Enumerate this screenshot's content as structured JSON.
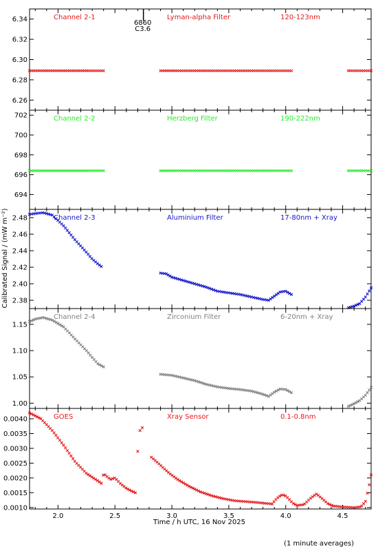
{
  "ylabel": "Calibrated Signal / (mW m⁻²)",
  "xlabel": "Time / h UTC, 16 Nov 2025",
  "footnote": "(1 minute averages)",
  "xlim": [
    1.75,
    4.75
  ],
  "xticks": [
    "2.0",
    "2.5",
    "3.0",
    "3.5",
    "4.0",
    "4.5"
  ],
  "event_marker": {
    "x": 2.75,
    "labels": [
      "6860",
      "C3.6"
    ]
  },
  "chart_data": [
    {
      "type": "scatter",
      "name": "Channel 2-1",
      "labels": [
        "Channel 2-1",
        "Lyman-alpha Filter",
        "120-123nm"
      ],
      "color": "#e31a1c",
      "ylim": [
        6.25,
        6.35
      ],
      "yticks": [
        "6.26",
        "6.28",
        "6.30",
        "6.32",
        "6.34"
      ],
      "segments": [
        {
          "x": [
            1.75,
            2.4
          ],
          "y": [
            6.289,
            6.289
          ]
        },
        {
          "x": [
            2.9,
            4.05
          ],
          "y": [
            6.289,
            6.289
          ]
        },
        {
          "x": [
            4.55,
            4.75
          ],
          "y": [
            6.289,
            6.289
          ]
        }
      ]
    },
    {
      "type": "scatter",
      "name": "Channel 2-2",
      "labels": [
        "Channel 2-2",
        "Herzberg Filter",
        "190-222nm"
      ],
      "color": "#22ee22",
      "ylim": [
        692.5,
        702.5
      ],
      "yticks": [
        "694",
        "696",
        "698",
        "700",
        "702"
      ],
      "segments": [
        {
          "x": [
            1.75,
            2.4
          ],
          "y": [
            696.4,
            696.4
          ]
        },
        {
          "x": [
            2.9,
            4.05
          ],
          "y": [
            696.4,
            696.4
          ]
        },
        {
          "x": [
            4.55,
            4.75
          ],
          "y": [
            696.4,
            696.4
          ]
        }
      ]
    },
    {
      "type": "scatter",
      "name": "Channel 2-3",
      "labels": [
        "Channel 2-3",
        "Aluminium Filter",
        "17-80nm + Xray"
      ],
      "color": "#1515cc",
      "ylim": [
        2.37,
        2.49
      ],
      "yticks": [
        "2.38",
        "2.40",
        "2.42",
        "2.44",
        "2.46",
        "2.48"
      ],
      "segments": [
        {
          "x": [
            1.75,
            1.8,
            1.87,
            1.95,
            2.05,
            2.15,
            2.25,
            2.3,
            2.35,
            2.38
          ],
          "y": [
            2.484,
            2.485,
            2.486,
            2.483,
            2.47,
            2.453,
            2.438,
            2.43,
            2.424,
            2.421
          ]
        },
        {
          "x": [
            2.9,
            2.95,
            3.0,
            3.1,
            3.2,
            3.3,
            3.4,
            3.5,
            3.6,
            3.7,
            3.8,
            3.85,
            3.9,
            3.95,
            4.0,
            4.05
          ],
          "y": [
            2.413,
            2.412,
            2.408,
            2.404,
            2.4,
            2.396,
            2.391,
            2.389,
            2.387,
            2.384,
            2.381,
            2.38,
            2.385,
            2.39,
            2.391,
            2.387
          ]
        },
        {
          "x": [
            4.55,
            4.6,
            4.65,
            4.7,
            4.75
          ],
          "y": [
            2.371,
            2.373,
            2.376,
            2.384,
            2.395
          ]
        }
      ]
    },
    {
      "type": "scatter",
      "name": "Channel 2-4",
      "labels": [
        "Channel 2-4",
        "Zirconium Filter",
        "6-20nm + Xray"
      ],
      "color": "#808080",
      "ylim": [
        0.99,
        1.18
      ],
      "yticks": [
        "1.00",
        "1.05",
        "1.10",
        "1.15"
      ],
      "segments": [
        {
          "x": [
            1.75,
            1.8,
            1.87,
            1.95,
            2.05,
            2.15,
            2.25,
            2.3,
            2.35,
            2.4
          ],
          "y": [
            1.155,
            1.16,
            1.163,
            1.158,
            1.145,
            1.122,
            1.1,
            1.087,
            1.075,
            1.069
          ]
        },
        {
          "x": [
            2.9,
            3.0,
            3.1,
            3.2,
            3.3,
            3.4,
            3.5,
            3.6,
            3.7,
            3.8,
            3.85,
            3.9,
            3.95,
            4.0,
            4.05
          ],
          "y": [
            1.055,
            1.053,
            1.048,
            1.043,
            1.036,
            1.031,
            1.028,
            1.026,
            1.023,
            1.017,
            1.013,
            1.021,
            1.027,
            1.026,
            1.02
          ]
        },
        {
          "x": [
            4.55,
            4.6,
            4.65,
            4.7,
            4.75
          ],
          "y": [
            0.994,
            0.999,
            1.005,
            1.015,
            1.03
          ]
        }
      ]
    },
    {
      "type": "scatter",
      "name": "GOES",
      "labels": [
        "GOES",
        "Xray Sensor",
        "0.1-0.8nm"
      ],
      "color": "#e31a1c",
      "ylim": [
        0.00095,
        0.00435
      ],
      "yticks": [
        "0.0010",
        "0.0015",
        "0.0020",
        "0.0025",
        "0.0030",
        "0.0035",
        "0.0040"
      ],
      "segments": [
        {
          "x": [
            1.75,
            1.85,
            1.95,
            2.05,
            2.15,
            2.25,
            2.35,
            2.38
          ],
          "y": [
            0.0042,
            0.004,
            0.0036,
            0.0031,
            0.00255,
            0.00215,
            0.0019,
            0.00182
          ]
        },
        {
          "x": [
            2.38,
            2.4,
            2.43,
            2.46,
            2.5,
            2.55,
            2.6,
            2.65,
            2.68
          ],
          "y": [
            0.00182,
            0.00215,
            0.00205,
            0.00195,
            0.002,
            0.0018,
            0.00165,
            0.00155,
            0.0015
          ]
        },
        {
          "x": [
            2.7,
            2.72,
            2.74
          ],
          "y": [
            0.0029,
            0.0036,
            0.0037
          ]
        },
        {
          "x": [
            2.82,
            2.88,
            2.93,
            2.98,
            3.05,
            3.15,
            3.25,
            3.35,
            3.45,
            3.55,
            3.65,
            3.75,
            3.85,
            3.88
          ],
          "y": [
            0.0027,
            0.0025,
            0.00232,
            0.00215,
            0.00195,
            0.00172,
            0.00153,
            0.0014,
            0.0013,
            0.00123,
            0.0012,
            0.00117,
            0.00113,
            0.00112
          ]
        },
        {
          "x": [
            3.88,
            3.92,
            3.96,
            3.99,
            4.02,
            4.06,
            4.1
          ],
          "y": [
            0.00112,
            0.0013,
            0.00142,
            0.00142,
            0.00132,
            0.00115,
            0.00107
          ]
        },
        {
          "x": [
            4.1,
            4.16,
            4.22,
            4.27,
            4.32,
            4.37,
            4.42
          ],
          "y": [
            0.00107,
            0.0011,
            0.00132,
            0.00146,
            0.0013,
            0.00113,
            0.00105
          ]
        },
        {
          "x": [
            4.42,
            4.5,
            4.6,
            4.66,
            4.7,
            4.73,
            4.75
          ],
          "y": [
            0.00105,
            0.00102,
            0.001,
            0.00102,
            0.0012,
            0.0017,
            0.0021
          ]
        }
      ]
    }
  ]
}
